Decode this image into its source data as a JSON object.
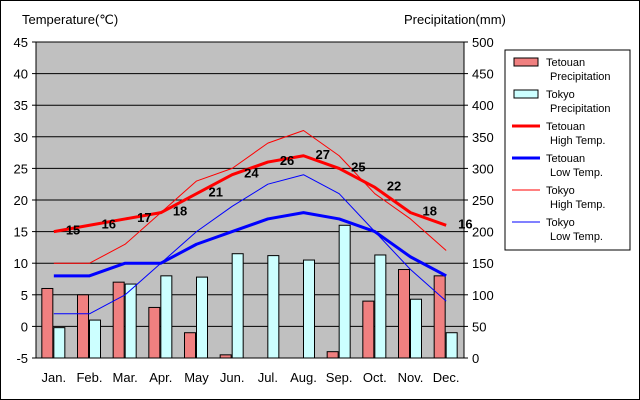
{
  "chart_data": {
    "type": "bar+line",
    "left_axis_title": "Temperature(℃)",
    "right_axis_title": "Precipitation(mm)",
    "categories": [
      "Jan.",
      "Feb.",
      "Mar.",
      "Apr.",
      "May",
      "Jun.",
      "Jul.",
      "Aug.",
      "Sep.",
      "Oct.",
      "Nov.",
      "Dec."
    ],
    "ylim_left": [
      -5,
      45
    ],
    "ylim_right": [
      0,
      500
    ],
    "yticks_left": [
      "45",
      "40",
      "35",
      "30",
      "25",
      "20",
      "15",
      "10",
      "5",
      "0",
      "-5"
    ],
    "yticks_right": [
      "500",
      "450",
      "400",
      "350",
      "300",
      "250",
      "200",
      "150",
      "100",
      "50",
      "0"
    ],
    "plot_background": "#c0c0c0",
    "bar_series": [
      {
        "name": "Tetouan Precipitation",
        "label_line1": "Tetouan",
        "label_line2": "Precipitation",
        "color": "#f08080",
        "values": [
          110,
          100,
          120,
          80,
          40,
          5,
          0,
          0,
          10,
          90,
          140,
          130
        ]
      },
      {
        "name": "Tokyo Precipitation",
        "label_line1": "Tokyo",
        "label_line2": "Precipitation",
        "color": "#ccffff",
        "values": [
          48,
          60,
          117,
          130,
          128,
          165,
          162,
          155,
          210,
          163,
          93,
          40
        ]
      }
    ],
    "line_series": [
      {
        "name": "Tetouan High Temp.",
        "label_line1": "Tetouan",
        "label_line2": "High Temp.",
        "color": "#ff0000",
        "width": 3,
        "values": [
          15,
          16,
          17,
          18,
          21,
          24,
          26,
          27,
          25,
          22,
          18,
          16
        ],
        "data_labels": [
          "15",
          "16",
          "17",
          "18",
          "21",
          "24",
          "26",
          "27",
          "25",
          "22",
          "18",
          "16"
        ]
      },
      {
        "name": "Tetouan Low Temp.",
        "label_line1": "Tetouan",
        "label_line2": "Low Temp.",
        "color": "#0000ff",
        "width": 3,
        "values": [
          8,
          8,
          10,
          10,
          13,
          15,
          17,
          18,
          17,
          15,
          11,
          8
        ]
      },
      {
        "name": "Tokyo High Temp.",
        "label_line1": "Tokyo",
        "label_line2": "High Temp.",
        "color": "#ff0000",
        "width": 1,
        "values": [
          10,
          10,
          13,
          18,
          23,
          25,
          29,
          31,
          27,
          21,
          17,
          12
        ]
      },
      {
        "name": "Tokyo Low Temp.",
        "label_line1": "Tokyo",
        "label_line2": "Low Temp.",
        "color": "#0000ff",
        "width": 1,
        "values": [
          2,
          2,
          5,
          10,
          15,
          19,
          22.5,
          24,
          21,
          15,
          9,
          4
        ]
      }
    ],
    "legend_position": "right"
  }
}
